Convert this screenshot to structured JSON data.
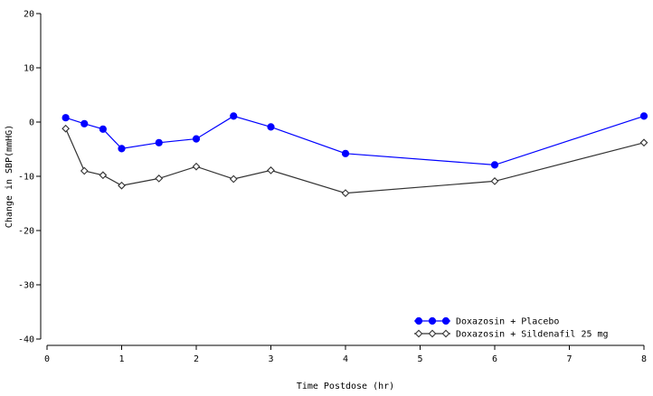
{
  "chart_data": {
    "type": "line",
    "title": "",
    "xlabel": "Time Postdose (hr)",
    "ylabel": "Change in SBP(mmHG)",
    "xlim": [
      0,
      8
    ],
    "ylim": [
      -40,
      20
    ],
    "xticks": [
      0,
      1,
      2,
      3,
      4,
      5,
      6,
      7,
      8
    ],
    "yticks": [
      -40,
      -30,
      -20,
      -10,
      0,
      10,
      20
    ],
    "grid": false,
    "legend_position": "bottom-right",
    "series": [
      {
        "name": "Doxazosin + Placebo",
        "color": "#0000ff",
        "marker": "circle",
        "x": [
          0.25,
          0.5,
          0.75,
          1,
          1.5,
          2,
          2.5,
          3,
          4,
          6,
          8
        ],
        "y": [
          0.8,
          -0.3,
          -1.3,
          -4.9,
          -3.8,
          -3.1,
          1.1,
          -0.9,
          -5.8,
          -7.9,
          1.1
        ]
      },
      {
        "name": "Doxazosin + Sildenafil 25 mg",
        "color": "#333333",
        "marker": "diamond",
        "x": [
          0.25,
          0.5,
          0.75,
          1,
          1.5,
          2,
          2.5,
          3,
          4,
          6,
          8
        ],
        "y": [
          -1.2,
          -9.0,
          -9.8,
          -11.7,
          -10.4,
          -8.2,
          -10.5,
          -8.9,
          -13.1,
          -10.9,
          -3.8
        ]
      }
    ]
  }
}
